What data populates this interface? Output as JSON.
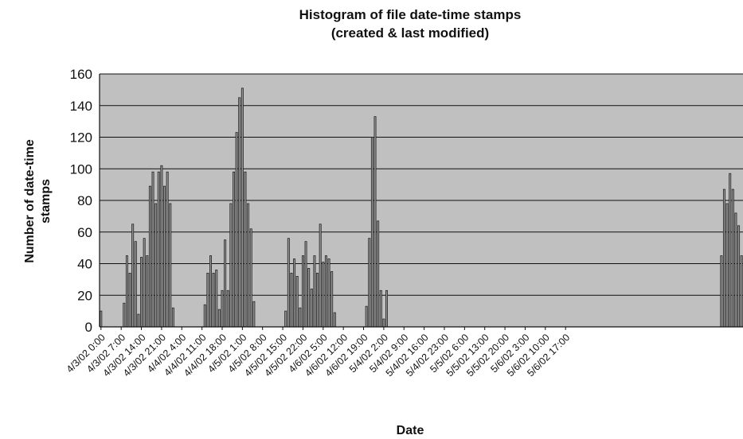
{
  "chart_data": {
    "type": "bar",
    "title_lines": [
      "Histogram of file date-time stamps",
      "(created & last modified)"
    ],
    "xlabel": "Date",
    "ylabel_lines": [
      "Number of date-time",
      "stamps"
    ],
    "ylim": [
      0,
      160
    ],
    "yticks": [
      0,
      20,
      40,
      60,
      80,
      100,
      120,
      140,
      160
    ],
    "grid": true,
    "category_interval": "1 hour",
    "x_tick_labels": [
      "4/3/02 0:00",
      "4/3/02 7:00",
      "4/3/02 14:00",
      "4/3/02 21:00",
      "4/4/02 4:00",
      "4/4/02 11:00",
      "4/4/02 18:00",
      "4/5/02 1:00",
      "4/5/02 8:00",
      "4/5/02 15:00",
      "4/5/02 22:00",
      "4/6/02 5:00",
      "4/6/02 12:00",
      "4/6/02 19:00",
      "5/4/02 2:00",
      "5/4/02 9:00",
      "5/4/02 16:00",
      "5/4/02 23:00",
      "5/5/02 6:00",
      "5/5/02 13:00",
      "5/5/02 20:00",
      "5/6/02 3:00",
      "5/6/02 10:00",
      "5/6/02 17:00"
    ],
    "values": [
      10,
      0,
      0,
      0,
      0,
      0,
      0,
      0,
      15,
      45,
      34,
      65,
      54,
      8,
      44,
      56,
      45,
      89,
      98,
      78,
      98,
      102,
      89,
      98,
      78,
      12,
      0,
      0,
      0,
      0,
      0,
      0,
      0,
      0,
      0,
      0,
      14,
      34,
      45,
      34,
      36,
      11,
      23,
      55,
      23,
      78,
      98,
      123,
      145,
      151,
      98,
      78,
      62,
      16,
      0,
      0,
      0,
      0,
      0,
      0,
      0,
      0,
      0,
      0,
      10,
      56,
      34,
      43,
      32,
      12,
      45,
      54,
      37,
      24,
      45,
      34,
      65,
      41,
      45,
      43,
      35,
      9,
      0,
      0,
      0,
      0,
      0,
      0,
      0,
      0,
      0,
      0,
      13,
      56,
      120,
      133,
      67,
      23,
      5,
      23,
      0,
      0,
      0,
      0,
      0,
      0,
      0,
      0,
      0,
      0,
      0,
      0,
      0,
      0,
      0,
      0,
      0,
      0,
      0,
      0,
      0,
      0,
      0,
      0,
      0,
      0,
      0,
      0,
      0,
      0,
      0,
      0,
      0,
      0,
      0,
      0,
      0,
      0,
      0,
      0,
      0,
      0,
      0,
      0,
      0,
      0,
      0,
      0,
      0,
      0,
      0,
      0,
      0,
      0,
      0,
      0,
      0,
      0,
      0,
      0,
      0,
      0,
      0,
      0,
      0,
      0,
      0,
      0,
      0,
      0,
      0,
      0,
      0,
      0,
      0,
      0,
      0,
      0,
      0,
      0,
      0,
      0,
      0,
      0,
      0,
      0,
      0,
      0,
      0,
      0,
      0,
      0,
      0,
      0,
      0,
      0,
      0,
      0,
      0,
      0,
      0,
      0,
      0,
      0,
      0,
      0,
      0,
      0,
      0,
      0,
      0,
      0,
      0,
      0,
      0,
      45,
      87,
      78,
      97,
      87,
      72,
      64,
      45
    ]
  }
}
